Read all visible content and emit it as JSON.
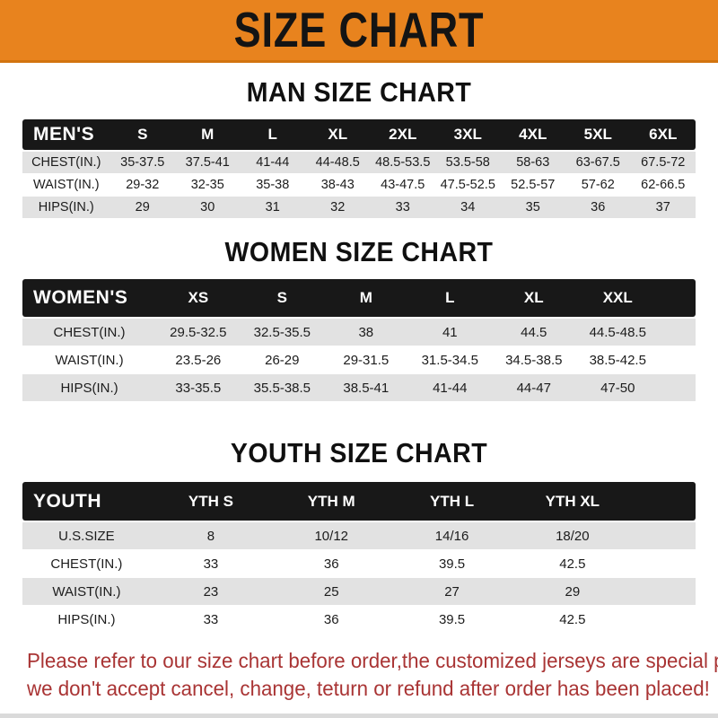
{
  "banner": {
    "title": "SIZE CHART",
    "bg_color": "#E8831E",
    "text_color": "#141414"
  },
  "sections": {
    "man_heading": "MAN SIZE CHART",
    "women_heading": "WOMEN SIZE CHART",
    "youth_heading": "YOUTH SIZE CHART"
  },
  "tables": {
    "men": {
      "label": "MEN'S",
      "columns": [
        "S",
        "M",
        "L",
        "XL",
        "2XL",
        "3XL",
        "4XL",
        "5XL",
        "6XL"
      ],
      "rows": [
        {
          "label": "CHEST(IN.)",
          "values": [
            "35-37.5",
            "37.5-41",
            "41-44",
            "44-48.5",
            "48.5-53.5",
            "53.5-58",
            "58-63",
            "63-67.5",
            "67.5-72"
          ]
        },
        {
          "label": "WAIST(IN.)",
          "values": [
            "29-32",
            "32-35",
            "35-38",
            "38-43",
            "43-47.5",
            "47.5-52.5",
            "52.5-57",
            "57-62",
            "62-66.5"
          ]
        },
        {
          "label": "HIPS(IN.)",
          "values": [
            "29",
            "30",
            "31",
            "32",
            "33",
            "34",
            "35",
            "36",
            "37"
          ]
        }
      ]
    },
    "women": {
      "label": "WOMEN'S",
      "columns": [
        "XS",
        "S",
        "M",
        "L",
        "XL",
        "XXL"
      ],
      "rows": [
        {
          "label": "CHEST(IN.)",
          "values": [
            "29.5-32.5",
            "32.5-35.5",
            "38",
            "41",
            "44.5",
            "44.5-48.5"
          ]
        },
        {
          "label": "WAIST(IN.)",
          "values": [
            "23.5-26",
            "26-29",
            "29-31.5",
            "31.5-34.5",
            "34.5-38.5",
            "38.5-42.5"
          ]
        },
        {
          "label": "HIPS(IN.)",
          "values": [
            "33-35.5",
            "35.5-38.5",
            "38.5-41",
            "41-44",
            "44-47",
            "47-50"
          ]
        }
      ]
    },
    "youth": {
      "label": "YOUTH",
      "columns": [
        "YTH S",
        "YTH M",
        "YTH L",
        "YTH XL"
      ],
      "rows": [
        {
          "label": "U.S.SIZE",
          "values": [
            "8",
            "10/12",
            "14/16",
            "18/20"
          ]
        },
        {
          "label": "CHEST(IN.)",
          "values": [
            "33",
            "36",
            "39.5",
            "42.5"
          ]
        },
        {
          "label": "WAIST(IN.)",
          "values": [
            "23",
            "25",
            "27",
            "29"
          ]
        },
        {
          "label": "HIPS(IN.)",
          "values": [
            "33",
            "36",
            "39.5",
            "42.5"
          ]
        }
      ]
    }
  },
  "footer": {
    "line1": "Please refer to our size chart before order,the customized jerseys are special products,",
    "line2": "we don't accept cancel, change, teturn or refund after order has been placed!",
    "text_color": "#A93434"
  }
}
